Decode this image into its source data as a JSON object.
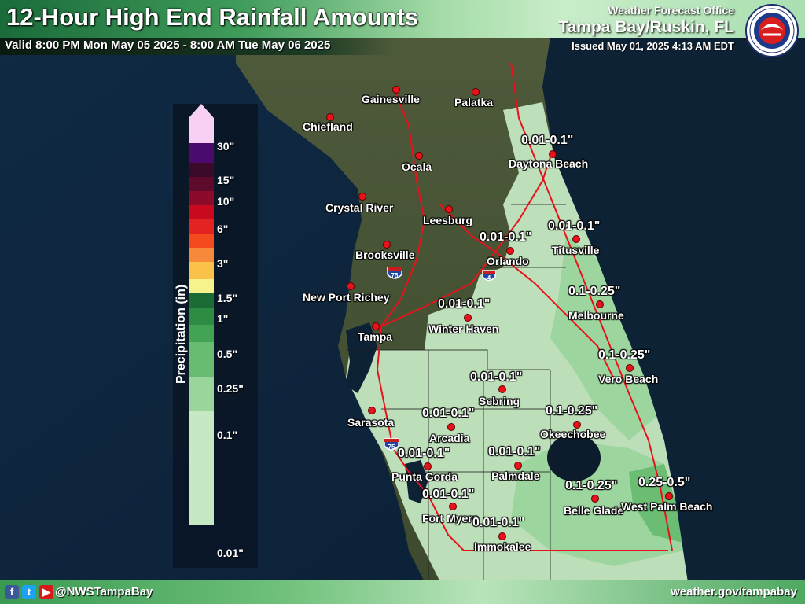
{
  "header": {
    "title": "12-Hour High End Rainfall Amounts",
    "valid": "Valid 8:00 PM Mon May 05 2025 - 8:00 AM Tue May 06 2025",
    "wfo": "Weather Forecast Office",
    "office": "Tampa Bay/Ruskin, FL",
    "issued": "Issued May 01, 2025 4:13 AM EDT",
    "logo_text": "NATIONAL WEATHER SERVICE"
  },
  "legend": {
    "title": "Precipitation (in)",
    "labels": [
      "30\"",
      "15\"",
      "10\"",
      "6\"",
      "3\"",
      "1.5\"",
      "1\"",
      "0.5\"",
      "0.25\"",
      "0.1\"",
      "0.01\""
    ],
    "colors": [
      "#f8d0f4",
      "#4a0a6e",
      "#3b0a2a",
      "#5e0a2a",
      "#8c0a2a",
      "#c80a1e",
      "#e32222",
      "#f54a1e",
      "#f58a3a",
      "#fbc24a",
      "#f6f28c",
      "#1b6b34",
      "#2e8b44",
      "#43a355",
      "#68bc72",
      "#9ad59c",
      "#c6e9c4"
    ],
    "shield_75": "75",
    "shield_4": "4"
  },
  "cities": [
    {
      "name": "Gainesville"
    },
    {
      "name": "Palatka"
    },
    {
      "name": "Chiefland"
    },
    {
      "name": "Daytona Beach",
      "amount": "0.01-0.1\""
    },
    {
      "name": "Ocala"
    },
    {
      "name": "Crystal River"
    },
    {
      "name": "Leesburg"
    },
    {
      "name": "Orlando",
      "amount": "0.01-0.1\""
    },
    {
      "name": "Titusville",
      "amount": "0.01-0.1\""
    },
    {
      "name": "Brooksville"
    },
    {
      "name": "New Port Richey"
    },
    {
      "name": "Melbourne",
      "amount": "0.1-0.25\""
    },
    {
      "name": "Winter Haven",
      "amount": "0.01-0.1\""
    },
    {
      "name": "Tampa"
    },
    {
      "name": "Vero Beach",
      "amount": "0.1-0.25\""
    },
    {
      "name": "Sebring",
      "amount": "0.01-0.1\""
    },
    {
      "name": "Sarasota"
    },
    {
      "name": "Arcadia",
      "amount": "0.01-0.1\""
    },
    {
      "name": "Okeechobee",
      "amount": "0.1-0.25\""
    },
    {
      "name": "Punta Gorda",
      "amount": "0.01-0.1\""
    },
    {
      "name": "Palmdale",
      "amount": "0.01-0.1\""
    },
    {
      "name": "Belle Glade",
      "amount": "0.1-0.25\""
    },
    {
      "name": "West Palm Beach",
      "amount": "0.25-0.5\""
    },
    {
      "name": "Fort Myers",
      "amount": "0.01-0.1\""
    },
    {
      "name": "Immokalee",
      "amount": "0.01-0.1\""
    }
  ],
  "footer": {
    "handle": "@NWSTampaBay",
    "website": "weather.gov/tampabay",
    "icons": [
      "facebook-icon",
      "twitter-icon",
      "youtube-icon"
    ]
  }
}
